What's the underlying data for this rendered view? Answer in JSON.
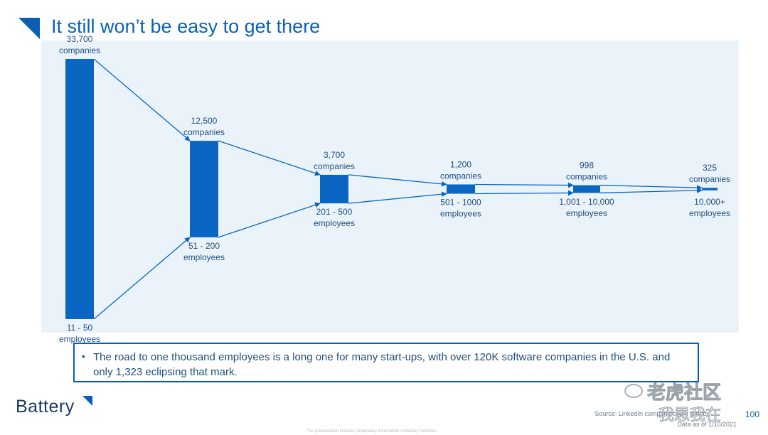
{
  "slide": {
    "title": "It still won’t be easy to get there",
    "callout_text": "The road to one thousand employees is a long one for many start-ups, with over 120K software companies in the U.S. and only 1,323 eclipsing that mark.",
    "bullet": "•",
    "logo": "Battery",
    "source": "Source: LinkedIn company count with th",
    "date": "Data as of 1/10/2021",
    "page_number": "100",
    "footer": "This presentation includes proprietary information of Battery Ventures",
    "watermark_line1": "老虎社区",
    "watermark_line2": "我思我在"
  },
  "colors": {
    "accent": "#0a62b8",
    "bar": "#0a66c2",
    "panel": "#ebf3fa",
    "label": "#1f4f80"
  },
  "chart_data": {
    "type": "bar",
    "title": "",
    "categories": [
      "11 - 50",
      "51 - 200",
      "201 - 500",
      "501 - 1000",
      "1,001 - 10,000",
      "10,000+"
    ],
    "values": [
      33700,
      12500,
      3700,
      1200,
      998,
      325
    ],
    "value_labels": [
      "33,700",
      "12,500",
      "3,700",
      "1,200",
      "998",
      "325"
    ],
    "top_suffix": "companies",
    "bottom_suffix": "employees"
  }
}
